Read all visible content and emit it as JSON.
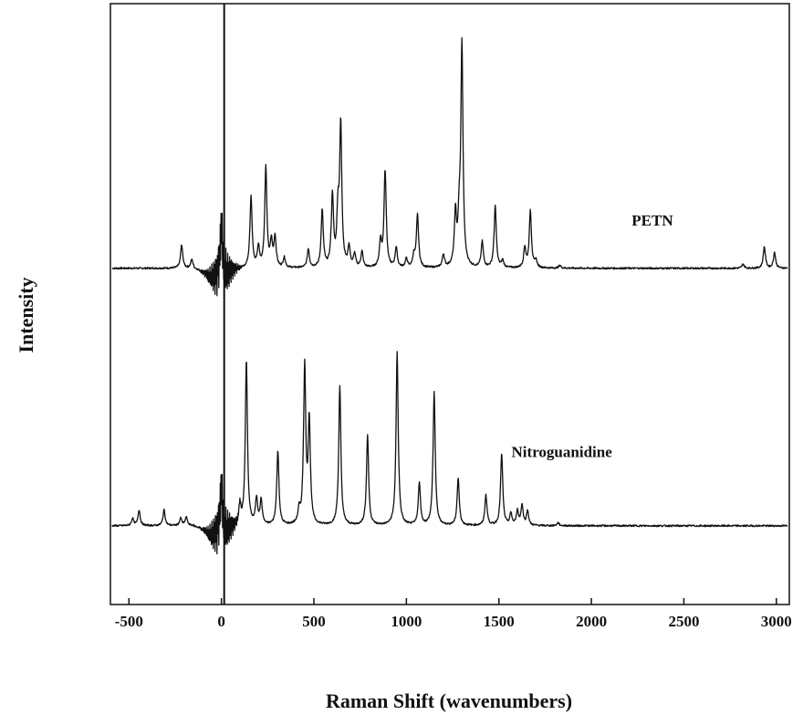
{
  "chart_data": {
    "type": "line",
    "xlabel": "Raman Shift (wavenumbers)",
    "ylabel": "Intensity",
    "xlim": [
      -600,
      3070
    ],
    "ylim": [
      -0.6,
      3.6
    ],
    "x_ticks": [
      -500,
      0,
      500,
      1000,
      1500,
      2000,
      2500,
      3000
    ],
    "x_tick_labels": [
      "-500",
      "0",
      "500",
      "1000",
      "1500",
      "2000",
      "2500",
      "3000"
    ],
    "y_ticks_shown": false,
    "grid": false,
    "laser_line": {
      "x": 15,
      "y_top": 3.6,
      "y_bottom": -0.6
    },
    "series": [
      {
        "name": "PETN",
        "baseline": 1.75,
        "annotation_x": 2330,
        "annotation_y": 2.05,
        "peaks": [
          {
            "x": -215,
            "h": 0.16
          },
          {
            "x": -160,
            "h": 0.06
          },
          {
            "x": 0,
            "h": 0.35
          },
          {
            "x": 160,
            "h": 0.5
          },
          {
            "x": 200,
            "h": 0.14
          },
          {
            "x": 240,
            "h": 0.7
          },
          {
            "x": 270,
            "h": 0.17
          },
          {
            "x": 290,
            "h": 0.21
          },
          {
            "x": 340,
            "h": 0.07
          },
          {
            "x": 470,
            "h": 0.13
          },
          {
            "x": 545,
            "h": 0.4
          },
          {
            "x": 600,
            "h": 0.5
          },
          {
            "x": 630,
            "h": 0.35
          },
          {
            "x": 645,
            "h": 0.98
          },
          {
            "x": 690,
            "h": 0.14
          },
          {
            "x": 720,
            "h": 0.09
          },
          {
            "x": 760,
            "h": 0.11
          },
          {
            "x": 860,
            "h": 0.18
          },
          {
            "x": 885,
            "h": 0.68
          },
          {
            "x": 945,
            "h": 0.14
          },
          {
            "x": 1000,
            "h": 0.06
          },
          {
            "x": 1040,
            "h": 0.08
          },
          {
            "x": 1060,
            "h": 0.37
          },
          {
            "x": 1200,
            "h": 0.09
          },
          {
            "x": 1265,
            "h": 0.36
          },
          {
            "x": 1285,
            "h": 0.26
          },
          {
            "x": 1300,
            "h": 1.55
          },
          {
            "x": 1410,
            "h": 0.18
          },
          {
            "x": 1480,
            "h": 0.43
          },
          {
            "x": 1520,
            "h": 0.05
          },
          {
            "x": 1640,
            "h": 0.14
          },
          {
            "x": 1670,
            "h": 0.4
          },
          {
            "x": 1700,
            "h": 0.05
          },
          {
            "x": 1830,
            "h": 0.02
          },
          {
            "x": 2820,
            "h": 0.03
          },
          {
            "x": 2935,
            "h": 0.15
          },
          {
            "x": 2990,
            "h": 0.11
          }
        ]
      },
      {
        "name": "Nitroguanidine",
        "baseline": -0.05,
        "annotation_x": 1840,
        "annotation_y": 0.43,
        "peaks": [
          {
            "x": -480,
            "h": 0.05
          },
          {
            "x": -445,
            "h": 0.11
          },
          {
            "x": -310,
            "h": 0.11
          },
          {
            "x": -220,
            "h": 0.05
          },
          {
            "x": -190,
            "h": 0.06
          },
          {
            "x": 0,
            "h": 0.32
          },
          {
            "x": 100,
            "h": 0.14
          },
          {
            "x": 135,
            "h": 1.15
          },
          {
            "x": 190,
            "h": 0.18
          },
          {
            "x": 215,
            "h": 0.17
          },
          {
            "x": 305,
            "h": 0.52
          },
          {
            "x": 420,
            "h": 0.09
          },
          {
            "x": 450,
            "h": 1.1
          },
          {
            "x": 475,
            "h": 0.72
          },
          {
            "x": 640,
            "h": 0.97
          },
          {
            "x": 790,
            "h": 0.63
          },
          {
            "x": 950,
            "h": 1.21
          },
          {
            "x": 1070,
            "h": 0.29
          },
          {
            "x": 1150,
            "h": 0.93
          },
          {
            "x": 1280,
            "h": 0.33
          },
          {
            "x": 1430,
            "h": 0.21
          },
          {
            "x": 1515,
            "h": 0.5
          },
          {
            "x": 1565,
            "h": 0.08
          },
          {
            "x": 1600,
            "h": 0.1
          },
          {
            "x": 1625,
            "h": 0.14
          },
          {
            "x": 1655,
            "h": 0.1
          },
          {
            "x": 1820,
            "h": 0.02
          }
        ]
      }
    ]
  }
}
